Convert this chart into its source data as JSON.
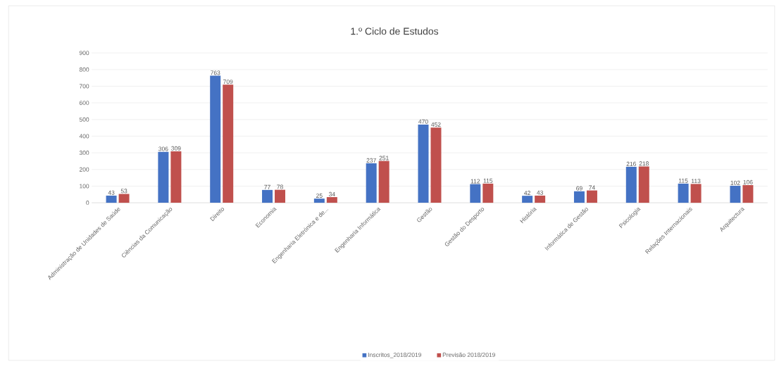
{
  "chart_data": {
    "type": "bar",
    "title": "1.º Ciclo de Estudos",
    "categories": [
      "Administração de Unidades de Saúde",
      "Ciências da Comunicação",
      "Direito",
      "Economia",
      "Engenharia Eletrónica e de...",
      "Engenharia Informática",
      "Gestão",
      "Gestão do Desporto",
      "História",
      "Informática de Gestão",
      "Psicologia",
      "Relações Internacionais",
      "Arquitectura"
    ],
    "series": [
      {
        "name": "Inscritos_2018/2019",
        "color": "#4472c4",
        "values": [
          43,
          306,
          763,
          77,
          25,
          237,
          470,
          112,
          42,
          69,
          216,
          115,
          102
        ]
      },
      {
        "name": "Previsão 2018/2019",
        "color": "#c0504d",
        "values": [
          53,
          309,
          709,
          78,
          34,
          251,
          452,
          115,
          43,
          74,
          218,
          113,
          106
        ]
      }
    ],
    "ylim": [
      0,
      900
    ],
    "yticks": [
      0,
      100,
      200,
      300,
      400,
      500,
      600,
      700,
      800,
      900
    ],
    "grid": "y",
    "legend": "bottom",
    "data_labels": true
  }
}
